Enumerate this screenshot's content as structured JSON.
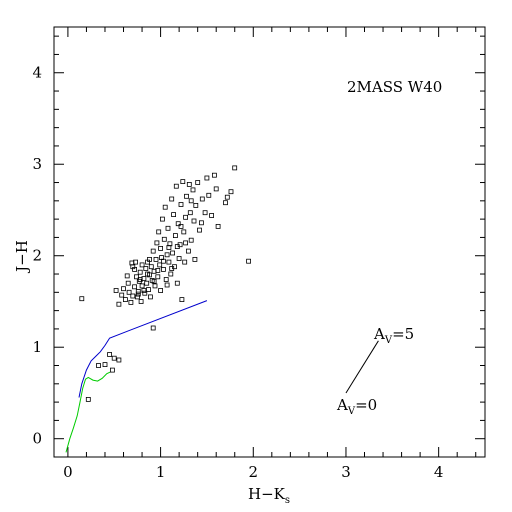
{
  "chart_data": {
    "type": "scatter",
    "title": "2MASS W40",
    "xlabel": "H−K",
    "xlabel_sub": "s",
    "ylabel": "J−H",
    "xlim": [
      -0.15,
      4.5
    ],
    "ylim": [
      -0.2,
      4.5
    ],
    "xticks": [
      0,
      1,
      2,
      3,
      4
    ],
    "yticks": [
      0,
      1,
      2,
      3,
      4
    ],
    "grid": false,
    "legend": "none",
    "colors": {
      "points": "#000000",
      "blue_curve": "#0000cc",
      "green_curve": "#00cc00",
      "reddening_vector": "#000000"
    },
    "annotations": {
      "av5_prefix": "A",
      "av5_sub": "V",
      "av5_suffix": "=5",
      "av0_prefix": "A",
      "av0_sub": "V",
      "av0_suffix": "=0"
    },
    "reddening_vector": {
      "x1": 3.0,
      "y1": 0.5,
      "x2": 3.35,
      "y2": 1.07
    },
    "series": [
      {
        "type": "line",
        "color_key": "blue_curve",
        "x": [
          0.12,
          0.15,
          0.2,
          0.25,
          0.3,
          0.35,
          0.4,
          0.45,
          1.5
        ],
        "y": [
          0.45,
          0.6,
          0.75,
          0.85,
          0.9,
          0.95,
          1.02,
          1.1,
          1.51
        ]
      },
      {
        "type": "line",
        "color_key": "green_curve",
        "x": [
          -0.02,
          0.02,
          0.06,
          0.1,
          0.13,
          0.16,
          0.19,
          0.22,
          0.27,
          0.32,
          0.37,
          0.42,
          0.46
        ],
        "y": [
          -0.15,
          0.0,
          0.12,
          0.25,
          0.4,
          0.55,
          0.65,
          0.67,
          0.64,
          0.63,
          0.66,
          0.71,
          0.73
        ]
      },
      {
        "type": "scatter",
        "color_key": "points",
        "points": [
          [
            0.15,
            1.53
          ],
          [
            0.22,
            0.43
          ],
          [
            0.33,
            0.8
          ],
          [
            0.4,
            0.81
          ],
          [
            0.45,
            0.92
          ],
          [
            0.48,
            0.75
          ],
          [
            0.5,
            0.88
          ],
          [
            0.55,
            0.86
          ],
          [
            0.92,
            1.21
          ],
          [
            0.52,
            1.62
          ],
          [
            0.55,
            1.47
          ],
          [
            0.58,
            1.57
          ],
          [
            0.6,
            1.64
          ],
          [
            0.62,
            1.52
          ],
          [
            0.65,
            1.7
          ],
          [
            0.66,
            1.6
          ],
          [
            0.68,
            1.49
          ],
          [
            0.7,
            1.56
          ],
          [
            0.7,
            1.88
          ],
          [
            0.72,
            1.66
          ],
          [
            0.73,
            1.93
          ],
          [
            0.74,
            1.77
          ],
          [
            0.75,
            1.55
          ],
          [
            0.76,
            1.61
          ],
          [
            0.77,
            1.72
          ],
          [
            0.78,
            1.82
          ],
          [
            0.79,
            1.5
          ],
          [
            0.8,
            1.9
          ],
          [
            0.8,
            1.67
          ],
          [
            0.82,
            1.75
          ],
          [
            0.83,
            1.59
          ],
          [
            0.84,
            1.86
          ],
          [
            0.85,
            1.7
          ],
          [
            0.86,
            1.93
          ],
          [
            0.87,
            1.63
          ],
          [
            0.88,
            1.79
          ],
          [
            0.89,
            1.55
          ],
          [
            0.9,
            1.88
          ],
          [
            0.91,
            1.73
          ],
          [
            0.92,
            2.05
          ],
          [
            0.93,
            1.83
          ],
          [
            0.94,
            1.67
          ],
          [
            0.95,
            1.96
          ],
          [
            0.96,
            2.14
          ],
          [
            0.97,
            1.77
          ],
          [
            0.98,
            2.26
          ],
          [
            0.99,
            1.9
          ],
          [
            1.0,
            2.08
          ],
          [
            1.0,
            1.62
          ],
          [
            1.01,
            1.98
          ],
          [
            1.02,
            2.4
          ],
          [
            1.03,
            1.85
          ],
          [
            1.04,
            2.18
          ],
          [
            1.05,
            2.53
          ],
          [
            1.06,
            1.74
          ],
          [
            1.07,
            2.01
          ],
          [
            1.08,
            2.3
          ],
          [
            1.09,
            1.93
          ],
          [
            1.1,
            2.13
          ],
          [
            1.11,
            1.8
          ],
          [
            1.12,
            2.62
          ],
          [
            1.13,
            2.03
          ],
          [
            1.14,
            2.45
          ],
          [
            1.15,
            1.88
          ],
          [
            1.16,
            2.22
          ],
          [
            1.17,
            2.76
          ],
          [
            1.18,
            1.7
          ],
          [
            1.19,
            2.35
          ],
          [
            1.2,
            1.97
          ],
          [
            1.21,
            2.12
          ],
          [
            1.22,
            2.56
          ],
          [
            1.23,
            1.52
          ],
          [
            1.24,
            2.81
          ],
          [
            1.25,
            2.26
          ],
          [
            1.26,
            1.93
          ],
          [
            1.27,
            2.42
          ],
          [
            1.28,
            2.65
          ],
          [
            1.3,
            2.05
          ],
          [
            1.31,
            2.78
          ],
          [
            1.32,
            2.47
          ],
          [
            1.33,
            2.17
          ],
          [
            1.35,
            2.72
          ],
          [
            1.36,
            2.38
          ],
          [
            1.37,
            1.96
          ],
          [
            1.38,
            2.55
          ],
          [
            1.4,
            2.8
          ],
          [
            1.42,
            2.28
          ],
          [
            1.45,
            2.62
          ],
          [
            1.48,
            2.47
          ],
          [
            1.5,
            2.85
          ],
          [
            1.52,
            2.66
          ],
          [
            1.55,
            2.44
          ],
          [
            1.6,
            2.73
          ],
          [
            1.62,
            2.32
          ],
          [
            1.7,
            2.58
          ],
          [
            1.72,
            2.64
          ],
          [
            1.76,
            2.7
          ],
          [
            1.8,
            2.96
          ],
          [
            1.95,
            1.94
          ],
          [
            0.72,
            1.85
          ],
          [
            0.78,
            1.74
          ],
          [
            0.82,
            1.62
          ],
          [
            0.88,
            1.96
          ],
          [
            0.93,
            1.72
          ],
          [
            0.97,
            1.84
          ],
          [
            1.03,
            1.94
          ],
          [
            1.07,
            1.68
          ],
          [
            1.12,
            1.86
          ],
          [
            1.18,
            2.1
          ],
          [
            1.22,
            2.32
          ],
          [
            1.27,
            2.14
          ],
          [
            1.33,
            2.6
          ],
          [
            1.44,
            2.36
          ],
          [
            1.58,
            2.88
          ],
          [
            0.64,
            1.78
          ],
          [
            0.69,
            1.92
          ],
          [
            0.76,
            1.58
          ],
          [
            0.86,
            1.8
          ],
          [
            1.09,
            2.09
          ]
        ]
      }
    ]
  }
}
